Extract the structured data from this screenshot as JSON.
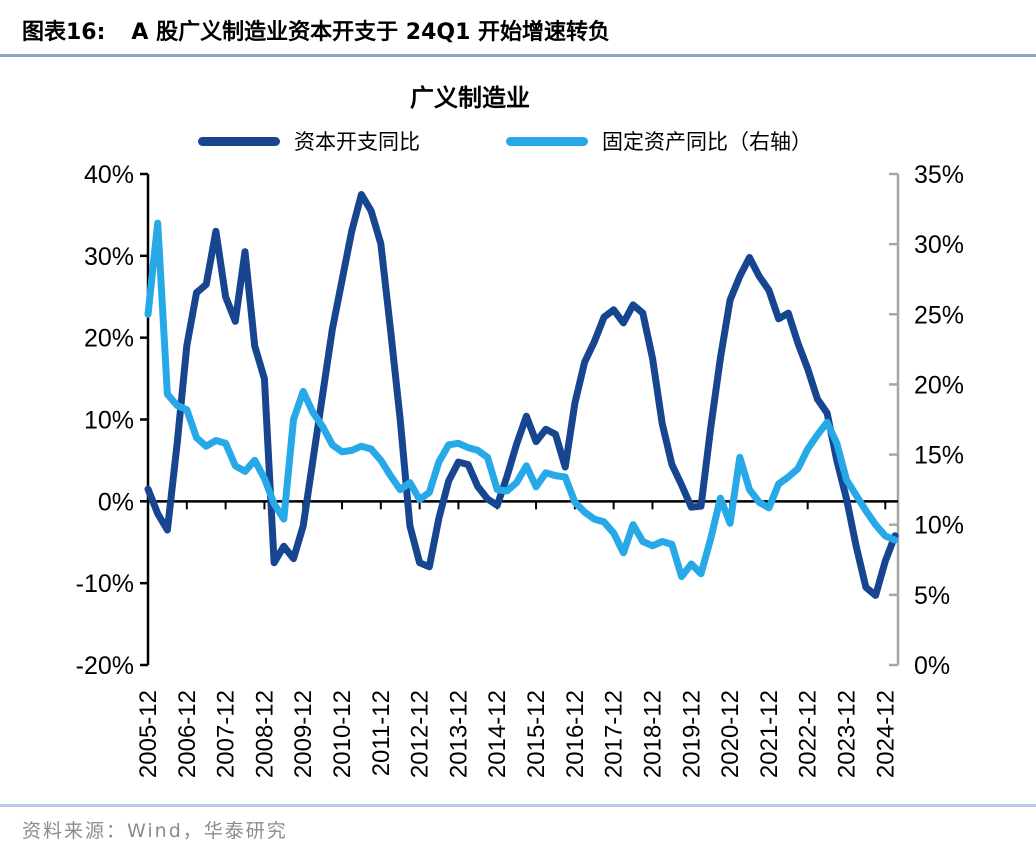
{
  "header": {
    "label": "图表16:",
    "title": "A 股广义制造业资本开支于 24Q1 开始增速转负"
  },
  "chart_title": "广义制造业",
  "legend": [
    {
      "label": "资本开支同比",
      "color": "#17458f"
    },
    {
      "label": "固定资产同比（右轴）",
      "color": "#27a9e8"
    }
  ],
  "source": "资料来源：Wind，华泰研究",
  "colors": {
    "capex_line": "#17458f",
    "fixed_asset_line": "#27a9e8",
    "left_axis": "#000000",
    "right_axis": "#a6a6a6",
    "zero_line": "#000000",
    "header_rule": "#8ca6c6",
    "footer_rule": "#b9cbe2",
    "source_text": "#8c8c8c"
  },
  "chart_data": {
    "type": "line",
    "title": "广义制造业",
    "x": [
      "2005-12",
      "2006-03",
      "2006-06",
      "2006-09",
      "2006-12",
      "2007-03",
      "2007-06",
      "2007-09",
      "2007-12",
      "2008-03",
      "2008-06",
      "2008-09",
      "2008-12",
      "2009-03",
      "2009-06",
      "2009-09",
      "2009-12",
      "2010-03",
      "2010-06",
      "2010-09",
      "2010-12",
      "2011-03",
      "2011-06",
      "2011-09",
      "2011-12",
      "2012-03",
      "2012-06",
      "2012-09",
      "2012-12",
      "2013-03",
      "2013-06",
      "2013-09",
      "2013-12",
      "2014-03",
      "2014-06",
      "2014-09",
      "2014-12",
      "2015-03",
      "2015-06",
      "2015-09",
      "2015-12",
      "2016-03",
      "2016-06",
      "2016-09",
      "2016-12",
      "2017-03",
      "2017-06",
      "2017-09",
      "2017-12",
      "2018-03",
      "2018-06",
      "2018-09",
      "2018-12",
      "2019-03",
      "2019-06",
      "2019-09",
      "2019-12",
      "2020-03",
      "2020-06",
      "2020-09",
      "2020-12",
      "2021-03",
      "2021-06",
      "2021-09",
      "2021-12",
      "2022-03",
      "2022-06",
      "2022-09",
      "2022-12",
      "2023-03",
      "2023-06",
      "2023-09",
      "2023-12",
      "2024-03",
      "2024-06",
      "2024-09",
      "2024-12",
      "2025-03"
    ],
    "series": [
      {
        "name": "资本开支同比",
        "axis": "left",
        "color": "#17458f",
        "values": [
          1.5,
          -1.5,
          -3.5,
          7,
          19,
          25.5,
          26.5,
          33,
          25,
          22,
          30.5,
          19,
          15,
          -7.5,
          -5.5,
          -7,
          -3,
          5,
          13,
          21,
          27,
          33,
          37.5,
          35.5,
          31.5,
          21,
          10,
          -3,
          -7.5,
          -8,
          -2,
          2.5,
          4.8,
          4.5,
          1.8,
          0.3,
          -0.5,
          3,
          7,
          10.4,
          7.3,
          8.8,
          8.2,
          4.2,
          12,
          17,
          19.5,
          22.5,
          23.4,
          21.8,
          24,
          23,
          17.5,
          9.5,
          4.5,
          2,
          -0.7,
          -0.6,
          9,
          17.5,
          24.6,
          27.5,
          29.8,
          27.5,
          25.8,
          22.3,
          23,
          19.3,
          16.2,
          12.5,
          10.8,
          5,
          0.3,
          -5.5,
          -10.5,
          -11.5,
          -7.3,
          -4.2
        ]
      },
      {
        "name": "固定资产同比（右轴）",
        "axis": "right",
        "color": "#27a9e8",
        "values": [
          25,
          31.5,
          19.3,
          18.5,
          18.2,
          16.2,
          15.6,
          16,
          15.8,
          14.2,
          13.8,
          14.6,
          13.3,
          11.5,
          10.4,
          17.5,
          19.5,
          18,
          17,
          15.7,
          15.2,
          15.3,
          15.6,
          15.4,
          14.6,
          13.5,
          12.5,
          13,
          11.8,
          12.3,
          14.5,
          15.7,
          15.8,
          15.5,
          15.3,
          14.8,
          12.5,
          12.4,
          13,
          14.2,
          12.7,
          13.7,
          13.5,
          13.4,
          11.6,
          10.9,
          10.4,
          10.2,
          9.4,
          8,
          10,
          8.8,
          8.5,
          8.8,
          8.6,
          6.3,
          7.2,
          6.5,
          9,
          11.9,
          10.1,
          14.8,
          12.5,
          11.6,
          11.2,
          12.9,
          13.4,
          14,
          15.4,
          16.4,
          17.3,
          15.8,
          13.2,
          12.1,
          11,
          10,
          9.2,
          8.9
        ]
      }
    ],
    "left_axis": {
      "min": -20,
      "max": 40,
      "step": 10,
      "tick_labels": [
        "40%",
        "30%",
        "20%",
        "10%",
        "0%",
        "-10%",
        "-20%"
      ]
    },
    "right_axis": {
      "min": 0,
      "max": 35,
      "step": 5,
      "tick_labels": [
        "35%",
        "30%",
        "25%",
        "20%",
        "15%",
        "10%",
        "5%",
        "0%"
      ]
    },
    "x_tick_labels": [
      "2005-12",
      "2006-12",
      "2007-12",
      "2008-12",
      "2009-12",
      "2010-12",
      "2011-12",
      "2012-12",
      "2013-12",
      "2014-12",
      "2015-12",
      "2016-12",
      "2017-12",
      "2018-12",
      "2019-12",
      "2020-12",
      "2021-12",
      "2022-12",
      "2023-12",
      "2024-12"
    ],
    "legend_position": "top",
    "grid": false
  }
}
